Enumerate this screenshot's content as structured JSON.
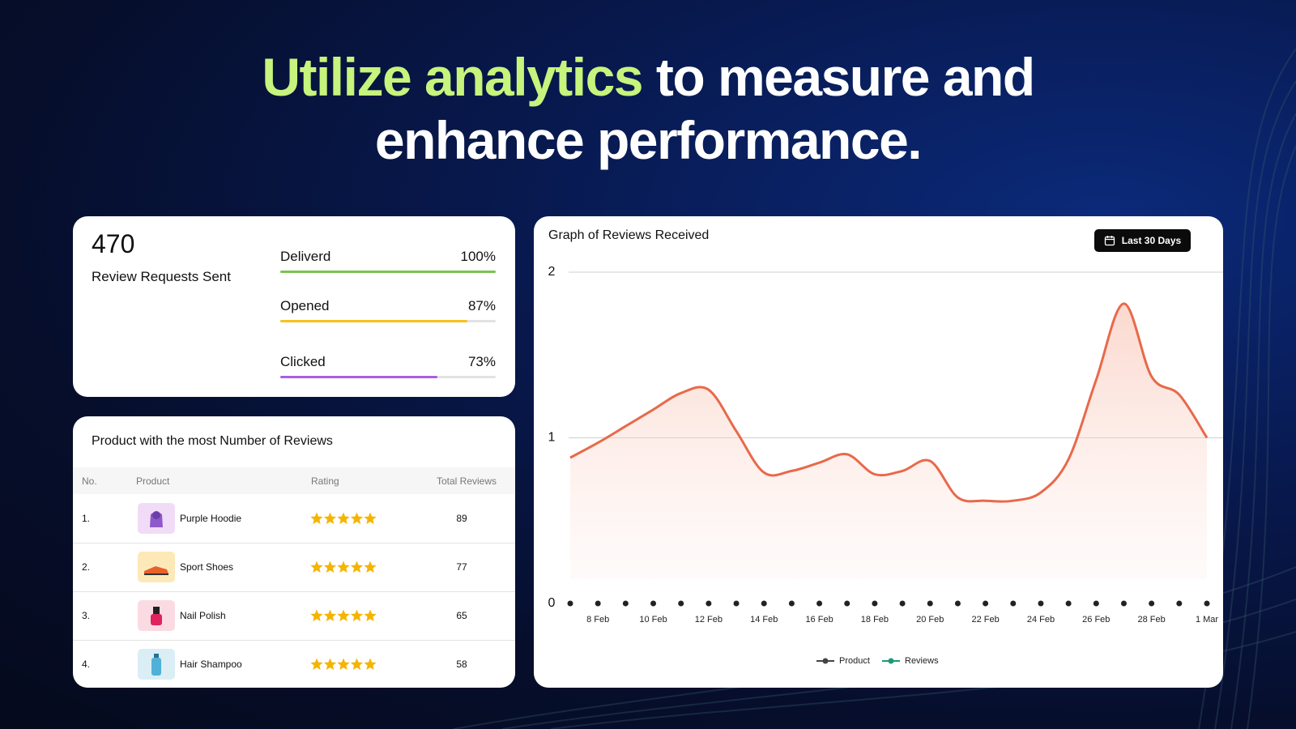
{
  "headline": {
    "highlight": "Utilize analytics",
    "rest": "to measure and",
    "line2": "enhance performance."
  },
  "stats": {
    "total": 470,
    "total_label": "Review Requests Sent",
    "xlim": [
      0,
      100
    ],
    "metrics": [
      {
        "label": "Deliverd",
        "value": 100,
        "value_label": "100%",
        "color": "#7cc34f"
      },
      {
        "label": "Opened",
        "value": 87,
        "value_label": "87%",
        "color": "#f7c21a"
      },
      {
        "label": "Clicked",
        "value": 73,
        "value_label": "73%",
        "color": "#a85fe0"
      }
    ]
  },
  "table": {
    "title": "Product with the most Number of Reviews",
    "columns": [
      "No.",
      "Product",
      "Rating",
      "Total Reviews"
    ],
    "rows": [
      {
        "no": "1.",
        "product": "Purple Hoodie",
        "rating": 5,
        "total": 89,
        "thumb": "#f1dcf7"
      },
      {
        "no": "2.",
        "product": "Sport Shoes",
        "rating": 5,
        "total": 77,
        "thumb": "#fde9b8"
      },
      {
        "no": "3.",
        "product": "Nail Polish",
        "rating": 5,
        "total": 65,
        "thumb": "#fbdbe3"
      },
      {
        "no": "4.",
        "product": "Hair Shampoo",
        "rating": 5,
        "total": 58,
        "thumb": "#dbeef5"
      }
    ]
  },
  "date_filter": "Last 30 Days",
  "chart_data": {
    "type": "line",
    "title": "Graph of Reviews Received",
    "categories": [
      null,
      "8 Feb",
      null,
      "10 Feb",
      null,
      "12 Feb",
      null,
      "14 Feb",
      null,
      "16 Feb",
      null,
      "18 Feb",
      null,
      "20 Feb",
      null,
      "22 Feb",
      null,
      "24 Feb",
      null,
      "26 Feb",
      null,
      "28 Feb",
      null,
      "1 Mar"
    ],
    "series": [
      {
        "name": "Product",
        "color": "#222222",
        "legend_color": "#444444",
        "values": [
          0,
          0,
          0,
          0,
          0,
          0,
          0,
          0,
          0,
          0,
          0,
          0,
          0,
          0,
          0,
          0,
          0,
          0,
          0,
          0,
          0,
          0,
          0,
          0
        ]
      },
      {
        "name": "Reviews",
        "color": "#e8694a",
        "legend_color": "#1a9a78",
        "values": [
          0.88,
          0.97,
          1.07,
          1.17,
          1.27,
          1.29,
          1.04,
          0.79,
          0.8,
          0.85,
          0.9,
          0.78,
          0.8,
          0.86,
          0.64,
          0.62,
          0.62,
          0.67,
          0.87,
          1.35,
          1.81,
          1.37,
          1.26,
          1.0
        ]
      }
    ],
    "ylim": [
      0,
      2
    ],
    "yticks": [
      0,
      1,
      2
    ],
    "grid": true
  }
}
